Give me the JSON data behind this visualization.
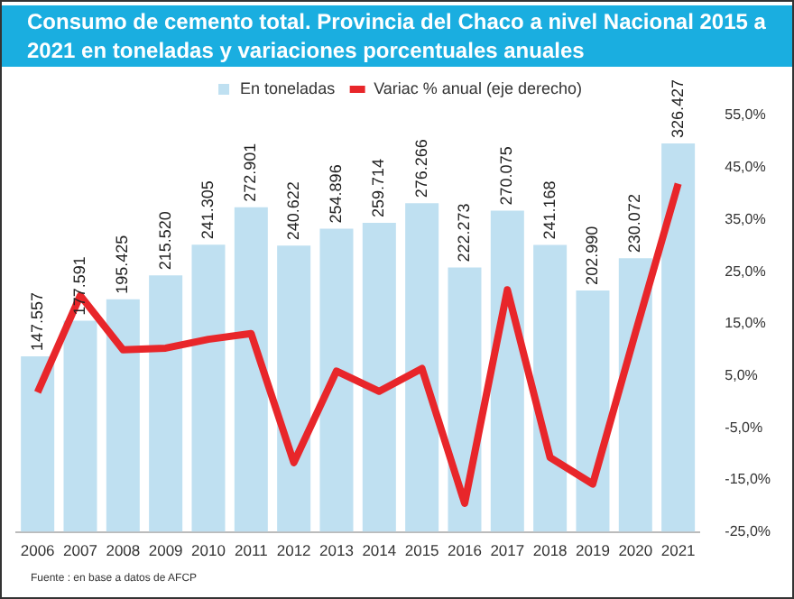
{
  "chart_data": {
    "type": "bar",
    "title": "Consumo de cemento total. Provincia del Chaco a nivel Nacional 2015 a 2021 en toneladas y variaciones porcentuales anuales",
    "categories": [
      "2006",
      "2007",
      "2008",
      "2009",
      "2010",
      "2011",
      "2012",
      "2013",
      "2014",
      "2015",
      "2016",
      "2017",
      "2018",
      "2019",
      "2020",
      "2021"
    ],
    "series": [
      {
        "name": "En toneladas",
        "color": "#bfe0f1",
        "values": [
          147557,
          177591,
          195425,
          215520,
          241305,
          272901,
          240622,
          254896,
          259714,
          276266,
          222273,
          270075,
          241168,
          202990,
          230072,
          326427
        ],
        "value_labels": [
          "147.557",
          "177.591",
          "195.425",
          "215.520",
          "241.305",
          "272.901",
          "240.622",
          "254.896",
          "259.714",
          "276.266",
          "222.273",
          "270.075",
          "241.168",
          "202.990",
          "230.072",
          "326.427"
        ]
      },
      {
        "name": "Variac % anual (eje derecho)",
        "type": "line",
        "axis": "y2",
        "color": "#e8262a",
        "marker": "none",
        "values": [
          1.8,
          20.4,
          10.0,
          10.3,
          12.0,
          13.1,
          -11.7,
          5.9,
          2.0,
          6.4,
          -19.5,
          21.5,
          -10.7,
          -15.8,
          13.3,
          41.9
        ]
      }
    ],
    "y2lim": [
      -25,
      55
    ],
    "y2ticks": [
      {
        "value": -25,
        "label": "-25,0%"
      },
      {
        "value": -15,
        "label": "-15,0%"
      },
      {
        "value": -5,
        "label": "-5,0%"
      },
      {
        "value": 5,
        "label": "5,0%"
      },
      {
        "value": 15,
        "label": "15,0%"
      },
      {
        "value": 25,
        "label": "25,0%"
      },
      {
        "value": 35,
        "label": "35,0%"
      },
      {
        "value": 45,
        "label": "45,0%"
      },
      {
        "value": 55,
        "label": "55,0%"
      }
    ],
    "grid": false,
    "legend": "top",
    "annotations": [
      "Fuente : en base a datos de AFCP"
    ]
  }
}
